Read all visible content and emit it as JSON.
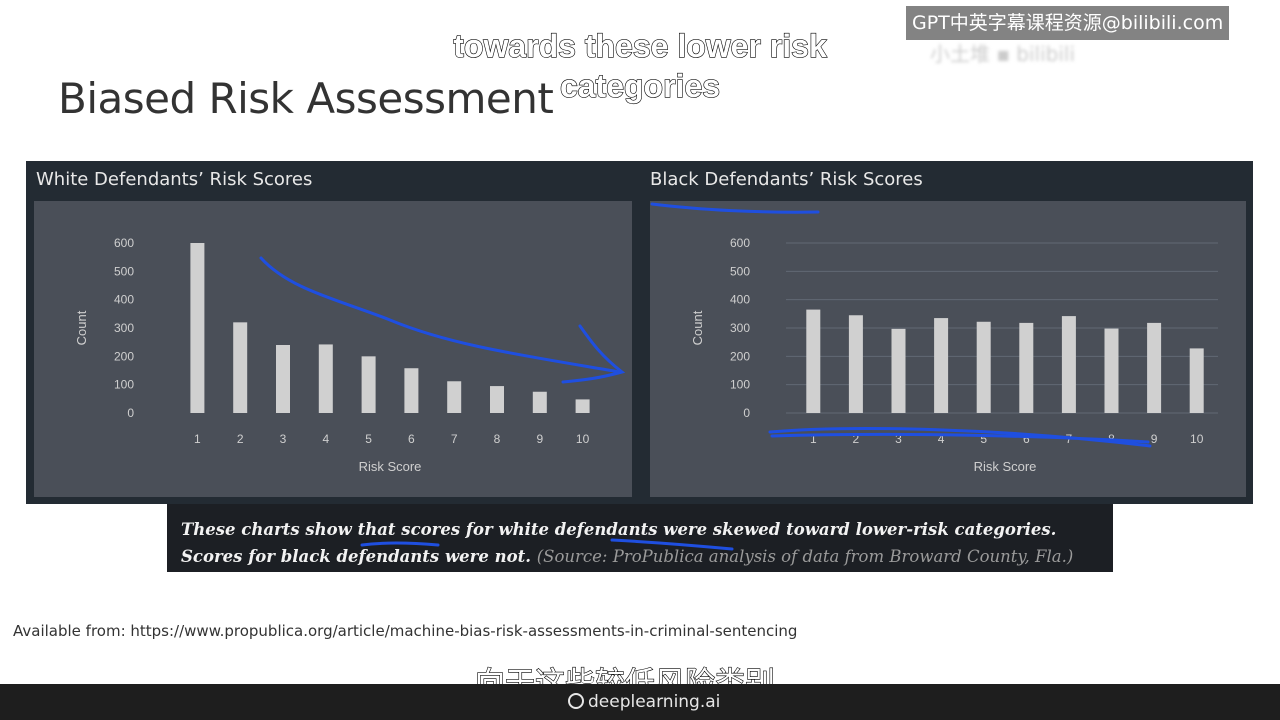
{
  "slide": {
    "title": "Biased Risk Assessment",
    "caption_en": "towards these lower risk categories",
    "caption_zh": "向于这些较低风险类别，",
    "watermark": "GPT中英字幕课程资源@bilibili.com",
    "footnote_main": "These charts show that scores for white defendants were skewed toward lower-risk categories. Scores for black defendants were not.",
    "footnote_source": "(Source: ProPublica analysis of data from Broward County, Fla.)",
    "available_from": "Available from: https://www.propublica.org/article/machine-bias-risk-assessments-in-criminal-sentencing",
    "brand": "deeplearning.ai"
  },
  "colors": {
    "frame": "#232b33",
    "plot_background": "#4a4f58",
    "bar": "#d0d0d0",
    "annotation_ink": "#1f4fe0"
  },
  "chart_data": [
    {
      "type": "bar",
      "title": "White Defendants’ Risk Scores",
      "categories": [
        "1",
        "2",
        "3",
        "4",
        "5",
        "6",
        "7",
        "8",
        "9",
        "10"
      ],
      "values": [
        600,
        320,
        240,
        242,
        200,
        158,
        112,
        95,
        75,
        48
      ],
      "xlabel": "Risk Score",
      "ylabel": "Count",
      "ylim": [
        0,
        600
      ],
      "yticks": [
        0,
        100,
        200,
        300,
        400,
        500,
        600
      ],
      "grid": false
    },
    {
      "type": "bar",
      "title": "Black Defendants’ Risk Scores",
      "categories": [
        "1",
        "2",
        "3",
        "4",
        "5",
        "6",
        "7",
        "8",
        "9",
        "10"
      ],
      "values": [
        365,
        345,
        297,
        335,
        322,
        318,
        342,
        298,
        318,
        228
      ],
      "xlabel": "Risk Score",
      "ylabel": "Count",
      "ylim": [
        0,
        600
      ],
      "yticks": [
        0,
        100,
        200,
        300,
        400,
        500,
        600
      ],
      "grid": true
    }
  ]
}
